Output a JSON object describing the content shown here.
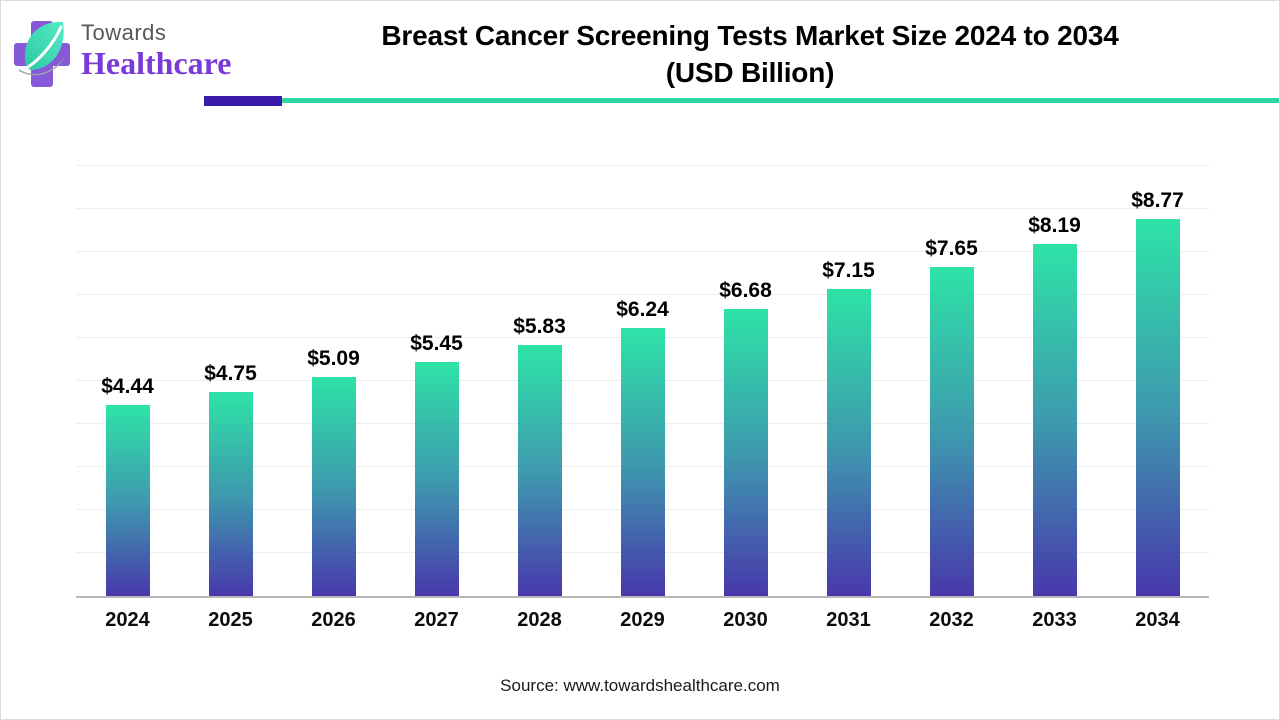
{
  "header": {
    "logo_line1": "Towards",
    "logo_line2": "Healthcare",
    "title_line1": "Breast Cancer Screening Tests Market Size 2024 to 2034",
    "title_line2": "(USD Billion)"
  },
  "colors": {
    "bar_top": "#2ee3a7",
    "bar_mid": "#3e97ae",
    "bar_bottom": "#4838ac",
    "gridline": "#ededed",
    "axis_line": "#b9b9b9",
    "divider_purple": "#3a1ca8",
    "divider_teal": "#2fd7a5",
    "logo_cross_purple": "#8659d8",
    "logo_leaf_teal": "#3fe4c0",
    "logo_healthcare_purple": "#7a3ad9",
    "logo_towards_gray": "#54585d"
  },
  "chart_data": {
    "type": "bar",
    "title": "Breast Cancer Screening Tests Market Size 2024 to 2034 (USD Billion)",
    "categories": [
      "2024",
      "2025",
      "2026",
      "2027",
      "2028",
      "2029",
      "2030",
      "2031",
      "2032",
      "2033",
      "2034"
    ],
    "values": [
      4.44,
      4.75,
      5.09,
      5.45,
      5.83,
      6.24,
      6.68,
      7.15,
      7.65,
      8.19,
      8.77
    ],
    "value_labels": [
      "$4.44",
      "$4.75",
      "$5.09",
      "$5.45",
      "$5.83",
      "$6.24",
      "$6.68",
      "$7.15",
      "$7.65",
      "$8.19",
      "$8.77"
    ],
    "xlabel": "",
    "ylabel": "",
    "ylim": [
      0,
      10
    ],
    "gridline_step": 1,
    "grid": true,
    "legend_position": "none"
  },
  "footer": {
    "source": "Source: www.towardshealthcare.com"
  }
}
